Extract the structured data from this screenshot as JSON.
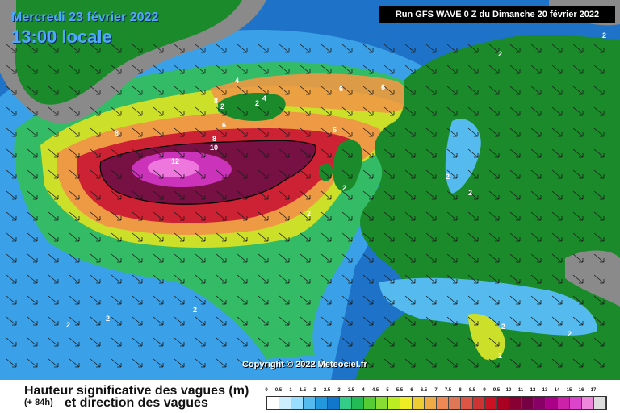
{
  "header": {
    "date": "Mercredi 23 février 2022",
    "time": "13:00 locale",
    "run": "Run GFS WAVE 0 Z du Dimanche 20 février 2022"
  },
  "copyright": "Copyright © 2022 Meteociel.fr",
  "legend": {
    "title": "Hauteur significative des vagues (m)",
    "lead_time": "(+ 84h)",
    "subtitle": "et direction des vagues",
    "ticks": [
      "0",
      "0.5",
      "1",
      "1.5",
      "2",
      "2.5",
      "3",
      "3.5",
      "4",
      "4.5",
      "5",
      "5.5",
      "6",
      "6.5",
      "7",
      "7.5",
      "8",
      "8.5",
      "9",
      "9.5",
      "10",
      "11",
      "12",
      "13",
      "14",
      "15",
      "16",
      "17"
    ],
    "colors": [
      "#ffffff",
      "#cceeff",
      "#99ddff",
      "#55bbee",
      "#2299dd",
      "#1177cc",
      "#33cc88",
      "#22bb55",
      "#55cc33",
      "#88dd33",
      "#bbee22",
      "#eeee22",
      "#eecc33",
      "#eeaa44",
      "#ee8855",
      "#dd7755",
      "#dd5544",
      "#cc3333",
      "#cc1122",
      "#aa0022",
      "#880033",
      "#770044",
      "#880066",
      "#aa0088",
      "#cc22aa",
      "#dd44cc",
      "#ee88dd",
      "#dddddd"
    ]
  },
  "contour_labels": [
    "12",
    "10",
    "8",
    "8",
    "8",
    "6",
    "6",
    "6",
    "6",
    "4",
    "4",
    "2",
    "2",
    "2",
    "2",
    "2",
    "2",
    "2",
    "2",
    "2",
    "2",
    "2",
    "2",
    "2",
    "2"
  ],
  "icons": [
    "wave-direction-arrow"
  ]
}
